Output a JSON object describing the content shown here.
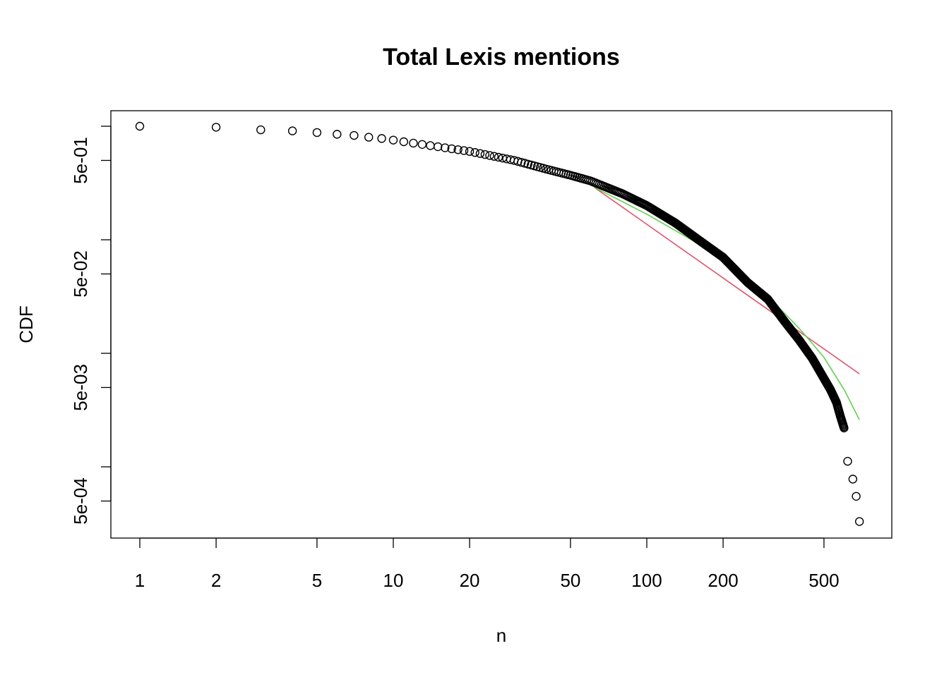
{
  "chart_data": {
    "type": "scatter",
    "title": "Total Lexis mentions",
    "xlabel": "n",
    "ylabel": "CDF",
    "x_scale": "log",
    "y_scale": "log",
    "xlim": [
      0.86,
      760
    ],
    "ylim": [
      0.00025,
      1.4
    ],
    "x_ticks": [
      1,
      2,
      5,
      10,
      20,
      50,
      100,
      200,
      500
    ],
    "x_tick_labels": [
      "1",
      "2",
      "5",
      "10",
      "20",
      "50",
      "100",
      "200",
      "500"
    ],
    "y_ticks": [
      1,
      0.5,
      0.1,
      0.05,
      0.01,
      0.005,
      0.001,
      0.0005
    ],
    "y_tick_labels": [
      "",
      "5e-01",
      "",
      "5e-02",
      "",
      "5e-03",
      "",
      "5e-04"
    ],
    "grid": false,
    "legend": "none",
    "points_discrete": {
      "x": [
        1,
        2,
        3,
        4,
        5,
        6,
        7,
        8,
        9,
        10
      ],
      "y": [
        1.0,
        0.98,
        0.93,
        0.91,
        0.88,
        0.85,
        0.83,
        0.8,
        0.78,
        0.755
      ]
    },
    "points_curve": {
      "x": [
        11,
        15,
        20,
        30,
        40,
        50,
        60,
        80,
        100,
        130,
        160,
        200,
        250,
        300,
        350,
        400,
        450,
        500,
        530,
        560,
        580,
        600,
        620,
        650,
        660,
        670,
        690
      ],
      "y": [
        0.73,
        0.66,
        0.6,
        0.5,
        0.42,
        0.37,
        0.33,
        0.255,
        0.2,
        0.14,
        0.1,
        0.07,
        0.042,
        0.03,
        0.019,
        0.013,
        0.009,
        0.006,
        0.0048,
        0.0037,
        0.0028,
        0.0022,
        0.0018,
        0.0011,
        0.0008,
        0.00055,
        0.00034
      ]
    },
    "points_bottom": {
      "x": [
        620,
        650,
        670,
        690
      ],
      "y": [
        0.00112,
        0.00078,
        0.00055,
        0.00033
      ]
    },
    "series": [
      {
        "type": "line",
        "color": "#DF536B",
        "x": [
          62,
          690
        ],
        "y": [
          0.29,
          0.0066
        ]
      },
      {
        "type": "line",
        "color": "#61D04F",
        "x": [
          62,
          100,
          150,
          200,
          250,
          300,
          350,
          400,
          450,
          500,
          600,
          690
        ],
        "y": [
          0.29,
          0.168,
          0.1,
          0.065,
          0.044,
          0.031,
          0.0225,
          0.0165,
          0.0122,
          0.0092,
          0.0048,
          0.0026
        ]
      }
    ]
  }
}
